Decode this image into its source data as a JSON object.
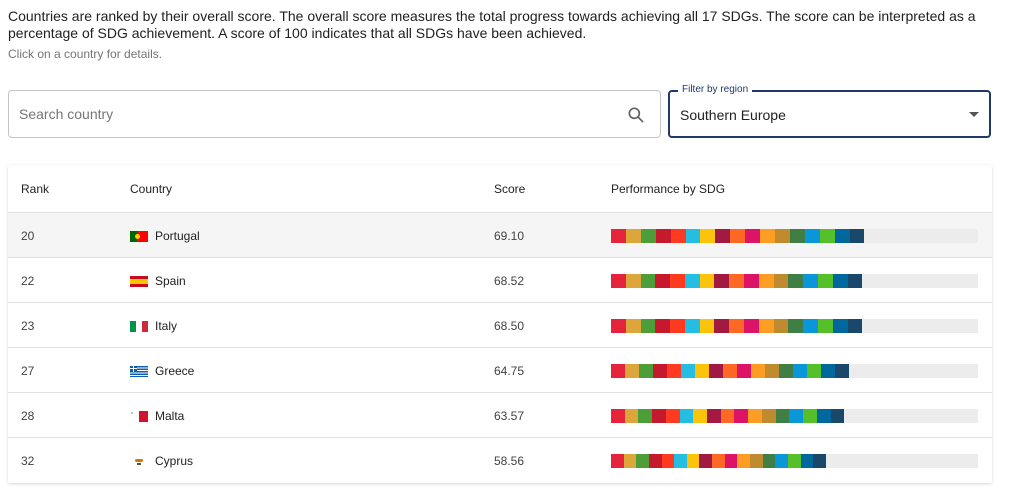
{
  "intro": {
    "text": "Countries are ranked by their overall score. The overall score measures the total progress towards achieving all 17 SDGs. The score can be interpreted as a percentage of SDG achievement. A score of 100 indicates that all SDGs have been achieved.",
    "hint": "Click on a country for details."
  },
  "search": {
    "placeholder": "Search country",
    "icon": "search-icon"
  },
  "region_filter": {
    "label": "Filter by region",
    "value": "Southern Europe"
  },
  "table": {
    "headers": {
      "rank": "Rank",
      "country": "Country",
      "score": "Score",
      "performance": "Performance by SDG"
    },
    "sdg_colors": [
      "#e5243b",
      "#dda63a",
      "#4c9f38",
      "#c5192d",
      "#ff3a21",
      "#26bde2",
      "#fcc30b",
      "#a21942",
      "#fd6925",
      "#dd1367",
      "#fd9d24",
      "#bf8b2e",
      "#3f7e44",
      "#0a97d9",
      "#56c02b",
      "#00689d",
      "#19486a"
    ],
    "rows": [
      {
        "rank": "20",
        "country": "Portugal",
        "flag": "portugal",
        "score": "69.10",
        "progress": 0.691
      },
      {
        "rank": "22",
        "country": "Spain",
        "flag": "spain",
        "score": "68.52",
        "progress": 0.685
      },
      {
        "rank": "23",
        "country": "Italy",
        "flag": "italy",
        "score": "68.50",
        "progress": 0.685
      },
      {
        "rank": "27",
        "country": "Greece",
        "flag": "greece",
        "score": "64.75",
        "progress": 0.648
      },
      {
        "rank": "28",
        "country": "Malta",
        "flag": "malta",
        "score": "63.57",
        "progress": 0.636
      },
      {
        "rank": "32",
        "country": "Cyprus",
        "flag": "cyprus",
        "score": "58.56",
        "progress": 0.586
      }
    ]
  }
}
